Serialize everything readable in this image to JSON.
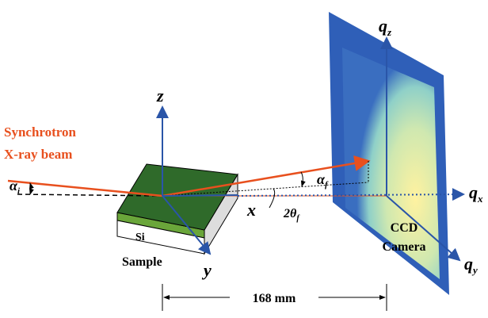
{
  "beam_label": {
    "line1": "Synchrotron",
    "line2": "X-ray beam"
  },
  "sample": {
    "layer": "Si",
    "label": "Sample"
  },
  "axes": {
    "x": "x",
    "y": "y",
    "z": "z"
  },
  "angles": {
    "incident": {
      "symbol": "α",
      "sub": "i"
    },
    "exit": {
      "symbol": "α",
      "sub": "f"
    },
    "in_plane": {
      "symbol": "2θ",
      "sub": "f"
    }
  },
  "q_axes": {
    "qx": {
      "symbol": "q",
      "sub": "x"
    },
    "qy": {
      "symbol": "q",
      "sub": "y"
    },
    "qz": {
      "symbol": "q",
      "sub": "z"
    }
  },
  "detector": {
    "line1": "CCD",
    "line2": "Camera"
  },
  "distance": "168 mm"
}
